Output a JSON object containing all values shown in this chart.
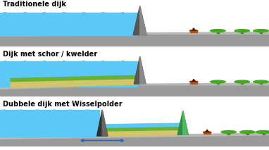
{
  "titles": [
    "Traditionele dijk",
    "Dijk met schor / kwelder",
    "Dubbele dijk met Wisselpolder"
  ],
  "bg_color": "#ffffff",
  "water_color": "#5bc8f5",
  "water_dark": "#3aaedc",
  "ground_color": "#9a9a9a",
  "ground_dark": "#7a7a7a",
  "sandy_color": "#d4c46a",
  "green_color": "#6ab030",
  "dyke_color": "#555555",
  "dyke2_color": "#2e8b40",
  "house_color": "#b85010",
  "tree_green": "#44aa22",
  "tree_trunk": "#886622",
  "title_fontsize": 7.0,
  "arrow_color": "#2266cc"
}
